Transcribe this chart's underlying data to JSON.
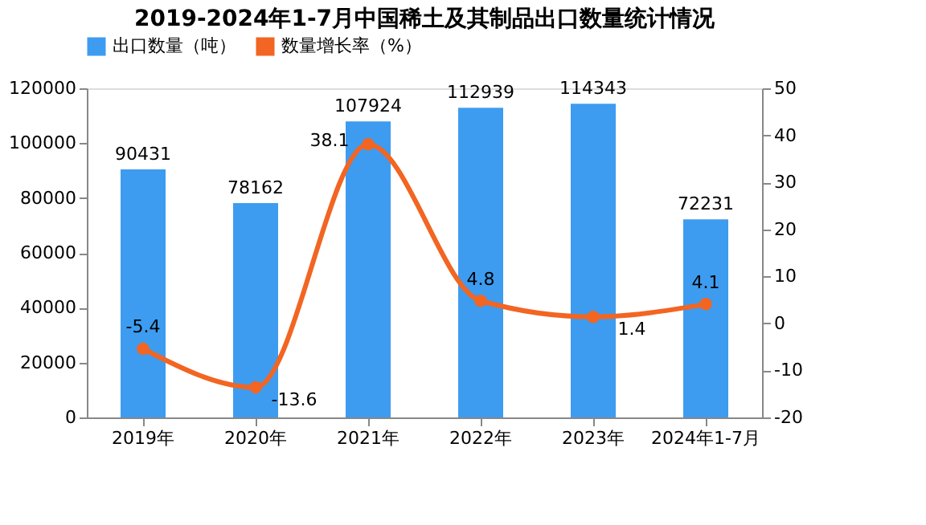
{
  "chart_data": {
    "type": "bar",
    "title": "2019-2024年1-7月中国稀土及其制品出口数量统计情况",
    "categories": [
      "2019年",
      "2020年",
      "2021年",
      "2022年",
      "2023年",
      "2024年1-7月"
    ],
    "series": [
      {
        "name": "出口数量（吨）",
        "color": "#3d9cf0",
        "values": [
          90431,
          78162,
          107924,
          112939,
          114343,
          72231
        ]
      },
      {
        "name": "数量增长率（%）",
        "type": "line",
        "axis": "y2",
        "color": "#f26522",
        "marker": "circle",
        "values": [
          -5.4,
          -13.6,
          38.1,
          4.8,
          1.4,
          4.1
        ]
      }
    ],
    "ylim": [
      0,
      120000
    ],
    "yticks": [
      0,
      20000,
      40000,
      60000,
      80000,
      100000,
      120000
    ],
    "y2lim": [
      -20,
      50
    ],
    "y2ticks": [
      -20,
      -10,
      0,
      10,
      20,
      30,
      40,
      50
    ],
    "data_labels": true,
    "legend": "top",
    "grid": false
  }
}
